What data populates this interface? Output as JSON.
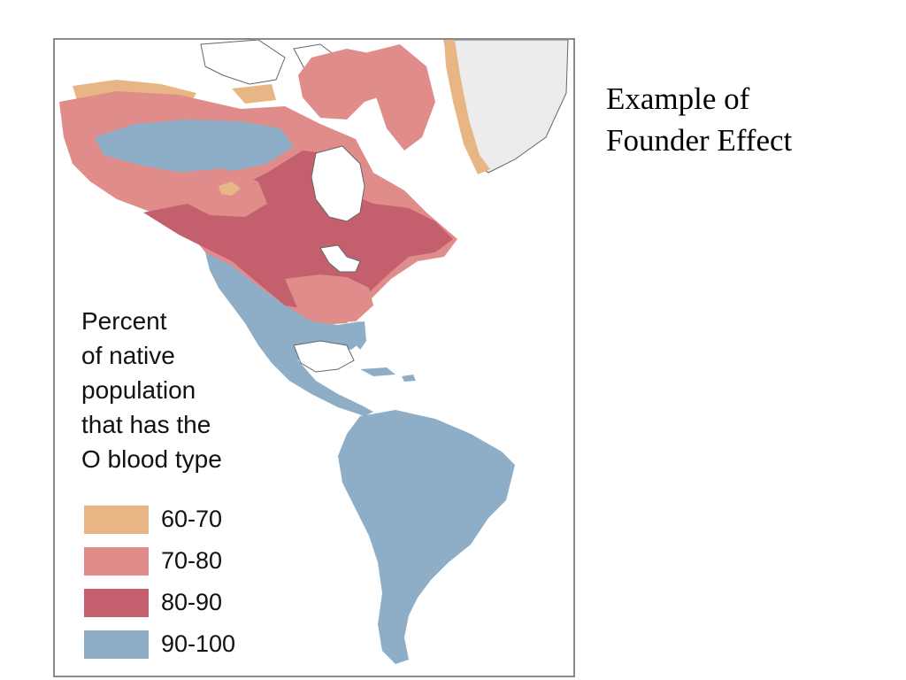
{
  "slide": {
    "title_lines": [
      "Example of",
      "Founder Effect"
    ]
  },
  "map": {
    "legend_title_lines": [
      "Percent",
      "of native",
      "population",
      "that has the",
      "O blood type"
    ],
    "legend": [
      {
        "label": "60-70",
        "color": "#e8b584"
      },
      {
        "label": "70-80",
        "color": "#df8c8a"
      },
      {
        "label": "80-90",
        "color": "#c4606e"
      },
      {
        "label": "90-100",
        "color": "#8eaec7"
      }
    ],
    "colors": {
      "greenland": "#ececec",
      "coast": "#666666",
      "frame": "#8a8a8a"
    }
  }
}
